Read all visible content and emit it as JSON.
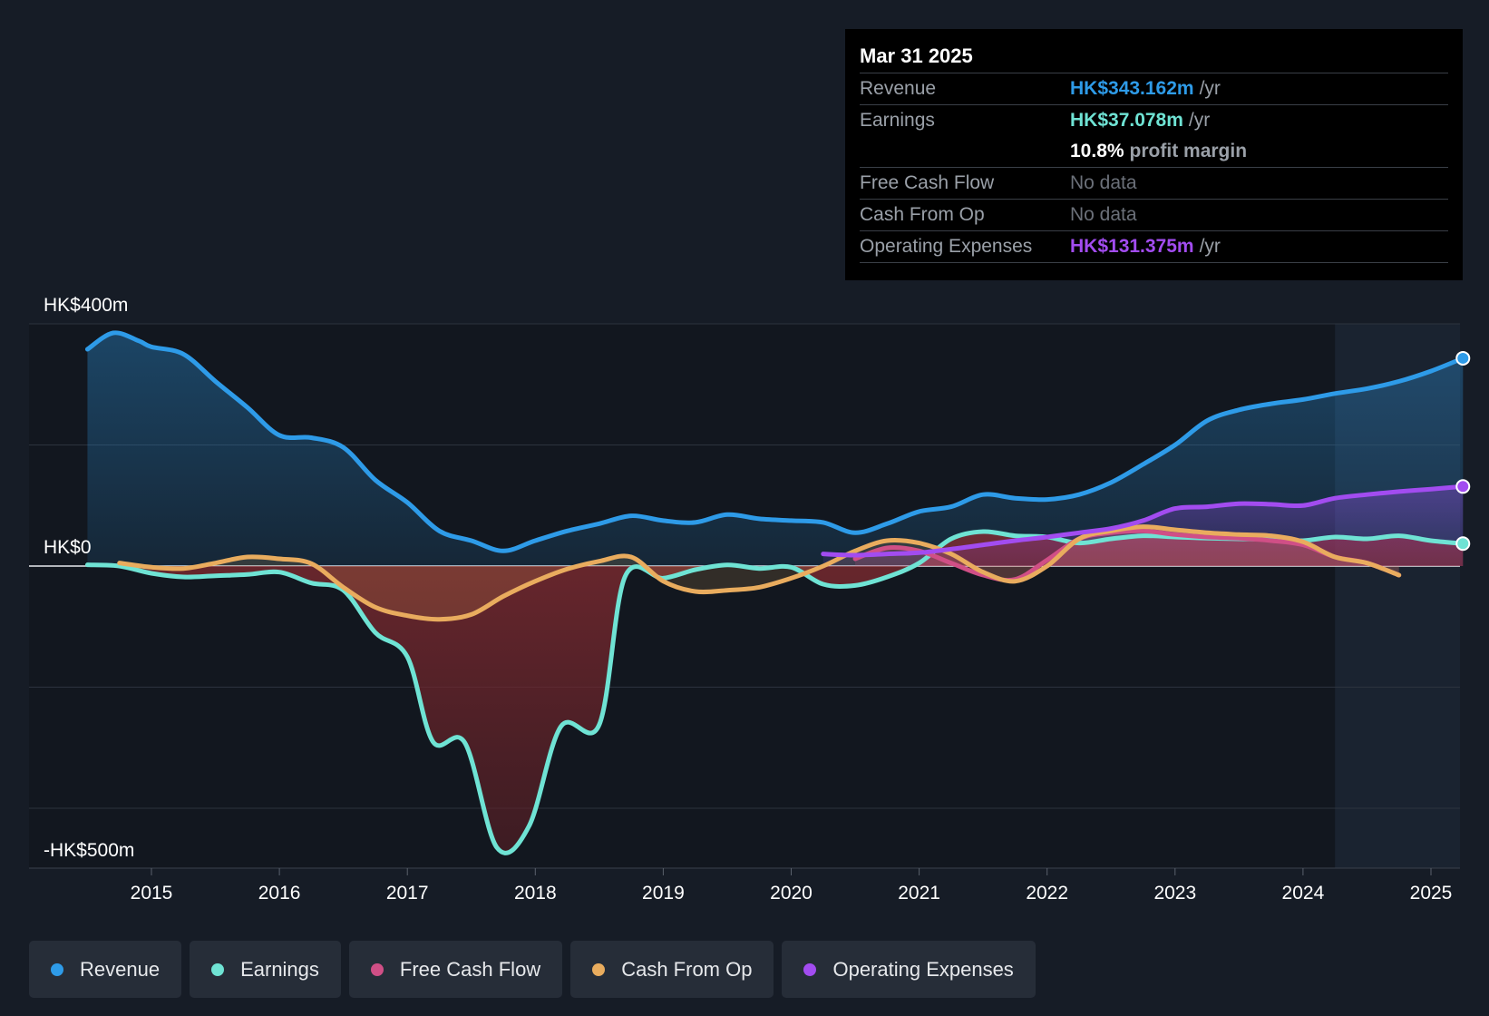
{
  "colors": {
    "revenue": "#2e9be8",
    "earnings": "#6fe3d4",
    "free_cash_flow": "#d04f86",
    "cash_from_op": "#e9ac5e",
    "operating_expenses": "#a24cf0"
  },
  "tooltip": {
    "date": "Mar 31 2025",
    "rows": {
      "revenue": {
        "label": "Revenue",
        "value": "HK$343.162m",
        "unit": "/yr"
      },
      "earnings": {
        "label": "Earnings",
        "value": "HK$37.078m",
        "unit": "/yr"
      },
      "margin": {
        "value": "10.8%",
        "text": "profit margin"
      },
      "fcf": {
        "label": "Free Cash Flow",
        "value": "No data"
      },
      "cfo": {
        "label": "Cash From Op",
        "value": "No data"
      },
      "opex": {
        "label": "Operating Expenses",
        "value": "HK$131.375m",
        "unit": "/yr"
      }
    }
  },
  "legend": [
    {
      "label": "Revenue",
      "color": "#2e9be8"
    },
    {
      "label": "Earnings",
      "color": "#6fe3d4"
    },
    {
      "label": "Free Cash Flow",
      "color": "#d04f86"
    },
    {
      "label": "Cash From Op",
      "color": "#e9ac5e"
    },
    {
      "label": "Operating Expenses",
      "color": "#a24cf0"
    }
  ],
  "chart_data": {
    "type": "line",
    "title": "",
    "xlabel": "",
    "ylabel": "",
    "ylim": [
      -500,
      400
    ],
    "xlim": [
      2014.2,
      2025.3
    ],
    "y_labels": [
      "HK$400m",
      "HK$0",
      "-HK$500m"
    ],
    "y_label_values": [
      400,
      0,
      -500
    ],
    "x_ticks": [
      2015,
      2016,
      2017,
      2018,
      2019,
      2020,
      2021,
      2022,
      2023,
      2024,
      2025
    ],
    "x_tick_labels": [
      "2015",
      "2016",
      "2017",
      "2018",
      "2019",
      "2020",
      "2021",
      "2022",
      "2023",
      "2024",
      "2025"
    ],
    "forecast_start": 2024.25,
    "series": [
      {
        "name": "Revenue",
        "key": "revenue",
        "fill": true,
        "points": [
          [
            2014.5,
            358
          ],
          [
            2014.7,
            385
          ],
          [
            2014.9,
            372
          ],
          [
            2015.0,
            362
          ],
          [
            2015.25,
            350
          ],
          [
            2015.5,
            305
          ],
          [
            2015.75,
            262
          ],
          [
            2016.0,
            216
          ],
          [
            2016.25,
            212
          ],
          [
            2016.5,
            196
          ],
          [
            2016.75,
            142
          ],
          [
            2017.0,
            105
          ],
          [
            2017.25,
            58
          ],
          [
            2017.5,
            42
          ],
          [
            2017.75,
            25
          ],
          [
            2018.0,
            42
          ],
          [
            2018.25,
            58
          ],
          [
            2018.5,
            70
          ],
          [
            2018.75,
            83
          ],
          [
            2019.0,
            75
          ],
          [
            2019.25,
            72
          ],
          [
            2019.5,
            85
          ],
          [
            2019.75,
            78
          ],
          [
            2020.0,
            75
          ],
          [
            2020.25,
            72
          ],
          [
            2020.5,
            55
          ],
          [
            2020.75,
            70
          ],
          [
            2021.0,
            90
          ],
          [
            2021.25,
            98
          ],
          [
            2021.5,
            118
          ],
          [
            2021.75,
            112
          ],
          [
            2022.0,
            110
          ],
          [
            2022.25,
            118
          ],
          [
            2022.5,
            138
          ],
          [
            2022.75,
            168
          ],
          [
            2023.0,
            200
          ],
          [
            2023.25,
            240
          ],
          [
            2023.5,
            258
          ],
          [
            2023.75,
            268
          ],
          [
            2024.0,
            275
          ],
          [
            2024.25,
            285
          ],
          [
            2024.5,
            293
          ],
          [
            2024.75,
            305
          ],
          [
            2025.0,
            322
          ],
          [
            2025.25,
            343.162
          ]
        ]
      },
      {
        "name": "Earnings",
        "key": "earnings",
        "fill": true,
        "points": [
          [
            2014.5,
            2
          ],
          [
            2014.75,
            0
          ],
          [
            2015.0,
            -12
          ],
          [
            2015.25,
            -18
          ],
          [
            2015.5,
            -16
          ],
          [
            2015.75,
            -14
          ],
          [
            2016.0,
            -10
          ],
          [
            2016.25,
            -28
          ],
          [
            2016.5,
            -40
          ],
          [
            2016.75,
            -110
          ],
          [
            2017.0,
            -150
          ],
          [
            2017.2,
            -290
          ],
          [
            2017.45,
            -292
          ],
          [
            2017.7,
            -465
          ],
          [
            2017.95,
            -430
          ],
          [
            2018.2,
            -265
          ],
          [
            2018.5,
            -262
          ],
          [
            2018.7,
            -18
          ],
          [
            2019.0,
            -20
          ],
          [
            2019.25,
            -6
          ],
          [
            2019.5,
            2
          ],
          [
            2019.75,
            -4
          ],
          [
            2020.0,
            -2
          ],
          [
            2020.25,
            -30
          ],
          [
            2020.5,
            -32
          ],
          [
            2020.75,
            -18
          ],
          [
            2021.0,
            5
          ],
          [
            2021.25,
            45
          ],
          [
            2021.5,
            57
          ],
          [
            2021.75,
            50
          ],
          [
            2022.0,
            48
          ],
          [
            2022.25,
            38
          ],
          [
            2022.5,
            45
          ],
          [
            2022.75,
            50
          ],
          [
            2023.0,
            48
          ],
          [
            2023.25,
            46
          ],
          [
            2023.5,
            45
          ],
          [
            2023.75,
            44
          ],
          [
            2024.0,
            42
          ],
          [
            2024.25,
            48
          ],
          [
            2024.5,
            45
          ],
          [
            2024.75,
            50
          ],
          [
            2025.0,
            42
          ],
          [
            2025.25,
            37.078
          ]
        ]
      },
      {
        "name": "Free Cash Flow",
        "key": "free_cash_flow",
        "fill": true,
        "points": [
          [
            2020.5,
            12
          ],
          [
            2020.75,
            30
          ],
          [
            2021.0,
            25
          ],
          [
            2021.25,
            5
          ],
          [
            2021.5,
            -15
          ],
          [
            2021.75,
            -22
          ],
          [
            2022.0,
            10
          ],
          [
            2022.25,
            45
          ],
          [
            2022.5,
            55
          ],
          [
            2022.75,
            58
          ],
          [
            2023.0,
            52
          ],
          [
            2023.25,
            48
          ],
          [
            2023.5,
            46
          ],
          [
            2023.75,
            42
          ],
          [
            2024.0,
            35
          ],
          [
            2024.25,
            15
          ],
          [
            2024.5,
            5
          ],
          [
            2024.75,
            -15
          ]
        ]
      },
      {
        "name": "Cash From Op",
        "key": "cash_from_op",
        "fill": true,
        "points": [
          [
            2014.75,
            5
          ],
          [
            2015.0,
            -2
          ],
          [
            2015.25,
            -4
          ],
          [
            2015.5,
            5
          ],
          [
            2015.75,
            15
          ],
          [
            2016.0,
            12
          ],
          [
            2016.25,
            4
          ],
          [
            2016.5,
            -35
          ],
          [
            2016.75,
            -68
          ],
          [
            2017.0,
            -82
          ],
          [
            2017.25,
            -88
          ],
          [
            2017.5,
            -80
          ],
          [
            2017.75,
            -50
          ],
          [
            2018.0,
            -25
          ],
          [
            2018.25,
            -5
          ],
          [
            2018.5,
            8
          ],
          [
            2018.75,
            15
          ],
          [
            2019.0,
            -25
          ],
          [
            2019.25,
            -42
          ],
          [
            2019.5,
            -40
          ],
          [
            2019.75,
            -35
          ],
          [
            2020.0,
            -20
          ],
          [
            2020.25,
            0
          ],
          [
            2020.5,
            25
          ],
          [
            2020.75,
            42
          ],
          [
            2021.0,
            38
          ],
          [
            2021.25,
            20
          ],
          [
            2021.5,
            -10
          ],
          [
            2021.75,
            -25
          ],
          [
            2022.0,
            0
          ],
          [
            2022.25,
            45
          ],
          [
            2022.5,
            58
          ],
          [
            2022.75,
            65
          ],
          [
            2023.0,
            60
          ],
          [
            2023.25,
            55
          ],
          [
            2023.5,
            52
          ],
          [
            2023.75,
            50
          ],
          [
            2024.0,
            40
          ],
          [
            2024.25,
            15
          ],
          [
            2024.5,
            5
          ],
          [
            2024.75,
            -15
          ]
        ]
      },
      {
        "name": "Operating Expenses",
        "key": "operating_expenses",
        "fill": true,
        "points": [
          [
            2020.25,
            20
          ],
          [
            2020.5,
            18
          ],
          [
            2020.75,
            20
          ],
          [
            2021.0,
            22
          ],
          [
            2021.25,
            28
          ],
          [
            2021.5,
            35
          ],
          [
            2021.75,
            42
          ],
          [
            2022.0,
            48
          ],
          [
            2022.25,
            55
          ],
          [
            2022.5,
            62
          ],
          [
            2022.75,
            75
          ],
          [
            2023.0,
            95
          ],
          [
            2023.25,
            98
          ],
          [
            2023.5,
            103
          ],
          [
            2023.75,
            102
          ],
          [
            2024.0,
            100
          ],
          [
            2024.25,
            112
          ],
          [
            2024.5,
            118
          ],
          [
            2024.75,
            123
          ],
          [
            2025.0,
            127
          ],
          [
            2025.25,
            131.375
          ]
        ]
      }
    ]
  }
}
